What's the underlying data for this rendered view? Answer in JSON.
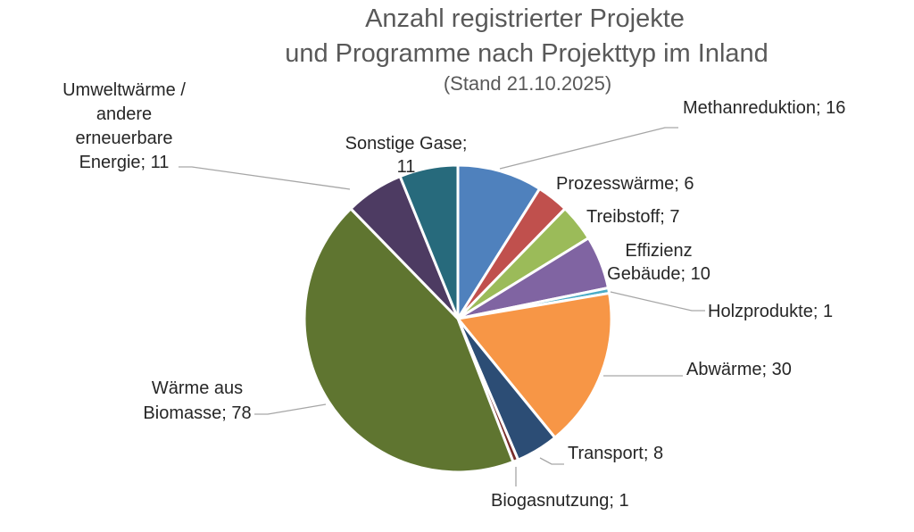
{
  "chart_data": {
    "type": "pie",
    "title": "Anzahl registrierter Projekte",
    "title_line2": "und Programme nach Projekttyp im Inland",
    "subtitle": "(Stand 21.10.2025)",
    "legend": "none",
    "slices": [
      {
        "label": "Methanreduktion",
        "value": 16,
        "color": "#4F81BD"
      },
      {
        "label": "Prozesswärme",
        "value": 6,
        "color": "#C0504D"
      },
      {
        "label": "Treibstoff",
        "value": 7,
        "color": "#9BBB59"
      },
      {
        "label": "Effizienz Gebäude",
        "value": 10,
        "color": "#8064A2"
      },
      {
        "label": "Holzprodukte",
        "value": 1,
        "color": "#4BACC6"
      },
      {
        "label": "Abwärme",
        "value": 30,
        "color": "#F79646"
      },
      {
        "label": "Transport",
        "value": 8,
        "color": "#2C4D75"
      },
      {
        "label": "Biogasnutzung",
        "value": 1,
        "color": "#772C2A"
      },
      {
        "label": "Wärme aus Biomasse",
        "value": 78,
        "color": "#5F7530"
      },
      {
        "label": "Umweltwärme / andere erneuerbare Energie",
        "value": 11,
        "color": "#4D3B62"
      },
      {
        "label": "Sonstige Gase",
        "value": 11,
        "color": "#276A7C"
      }
    ],
    "data_labels": [
      [
        "Methanreduktion; 16"
      ],
      [
        "Prozesswärme; 6"
      ],
      [
        "Treibstoff; 7"
      ],
      [
        "Effizienz",
        "Gebäude; 10"
      ],
      [
        "Holzprodukte; 1"
      ],
      [
        "Abwärme; 30"
      ],
      [
        "Transport; 8"
      ],
      [
        "Biogasnutzung; 1"
      ],
      [
        "Wärme aus",
        "Biomasse; 78"
      ],
      [
        "Umweltwärme /",
        "andere",
        "erneuerbare",
        "Energie; 11"
      ],
      [
        "Sonstige Gase;",
        "11"
      ]
    ]
  }
}
